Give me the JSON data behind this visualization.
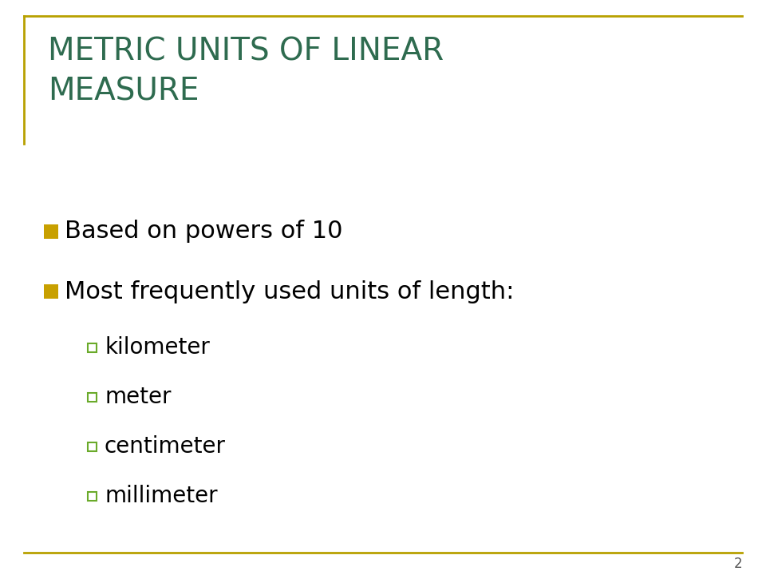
{
  "title": "METRIC UNITS OF LINEAR\nMEASURE",
  "title_color": "#2E6B4F",
  "title_fontsize": 28,
  "background_color": "#FFFFFF",
  "border_color": "#B8A000",
  "bullet_color": "#C8A000",
  "sub_bullet_color": "#6AAA2A",
  "bullet1": "Based on powers of 10",
  "bullet2": "Most frequently used units of length:",
  "sub_bullets": [
    "kilometer",
    "meter",
    "centimeter",
    "millimeter"
  ],
  "bullet_fontsize": 22,
  "sub_bullet_fontsize": 20,
  "text_color": "#000000",
  "page_number": "2",
  "page_number_color": "#555555",
  "page_number_fontsize": 12
}
